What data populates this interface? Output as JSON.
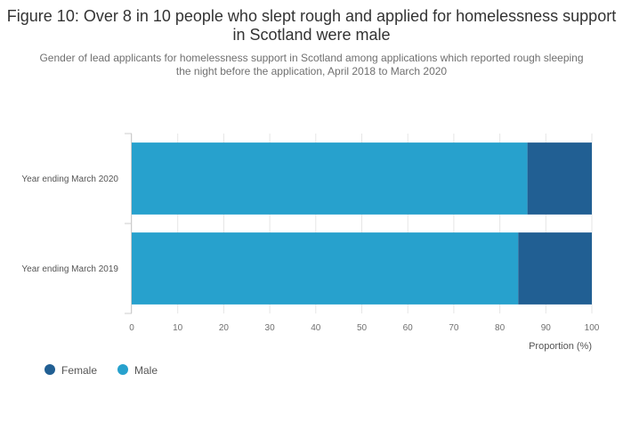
{
  "chart_data": {
    "type": "bar",
    "orientation": "horizontal",
    "stacked": true,
    "title": "Figure 10: Over 8 in 10 people who slept rough and applied for homelessness support in Scotland were male",
    "subtitle": "Gender of lead applicants for homelessness support in Scotland among applications which reported rough sleeping the night before the application, April 2018 to March 2020",
    "categories": [
      "Year ending March 2020",
      "Year ending March 2019"
    ],
    "series": [
      {
        "name": "Male",
        "color": "#27a1cd",
        "values": [
          86,
          84
        ]
      },
      {
        "name": "Female",
        "color": "#215f93",
        "values": [
          14,
          16
        ]
      }
    ],
    "xlabel": "Proportion (%)",
    "ylabel": "",
    "xlim": [
      0,
      100
    ],
    "xticks": [
      0,
      10,
      20,
      30,
      40,
      50,
      60,
      70,
      80,
      90,
      100
    ],
    "grid": true,
    "legend": {
      "placement": "bottom-left",
      "order": [
        "Female",
        "Male"
      ]
    }
  }
}
